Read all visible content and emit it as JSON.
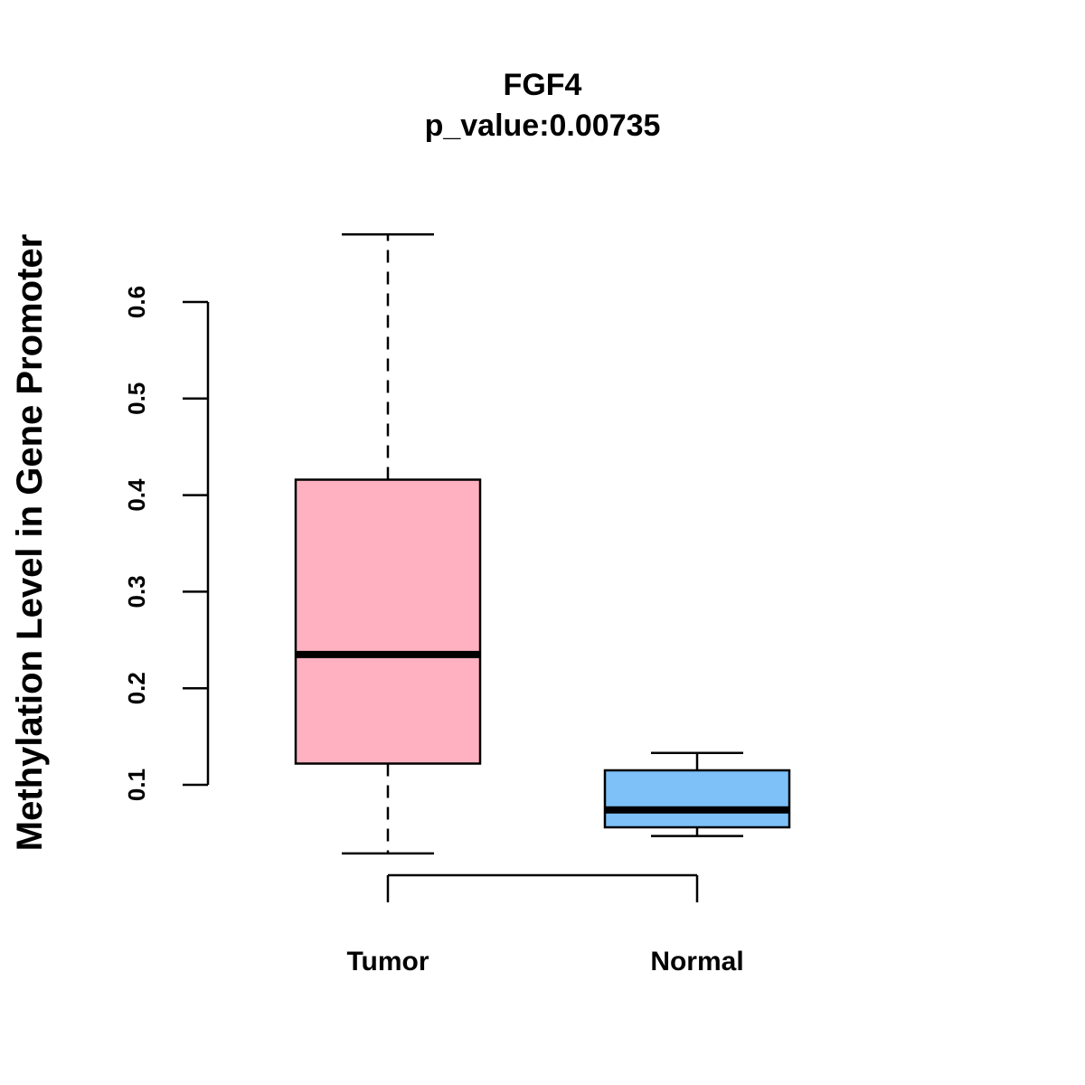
{
  "chart_data": {
    "type": "boxplot",
    "title": "FGF4",
    "subtitle": "p_value:0.00735",
    "xlabel": "",
    "ylabel": "Methylation Level in Gene Promoter",
    "ylim": [
      0.1,
      0.6
    ],
    "yticks": [
      "0.1",
      "0.2",
      "0.3",
      "0.4",
      "0.5",
      "0.6"
    ],
    "categories": [
      "Tumor",
      "Normal"
    ],
    "series": [
      {
        "name": "Tumor",
        "color": "#FFB1C1",
        "whisker_low": 0.029,
        "q1": 0.122,
        "median": 0.235,
        "q3": 0.416,
        "whisker_high": 0.67
      },
      {
        "name": "Normal",
        "color": "#7DC1F8",
        "whisker_low": 0.047,
        "q1": 0.056,
        "median": 0.074,
        "q3": 0.115,
        "whisker_high": 0.133
      }
    ],
    "legend": "none",
    "grid": false
  }
}
